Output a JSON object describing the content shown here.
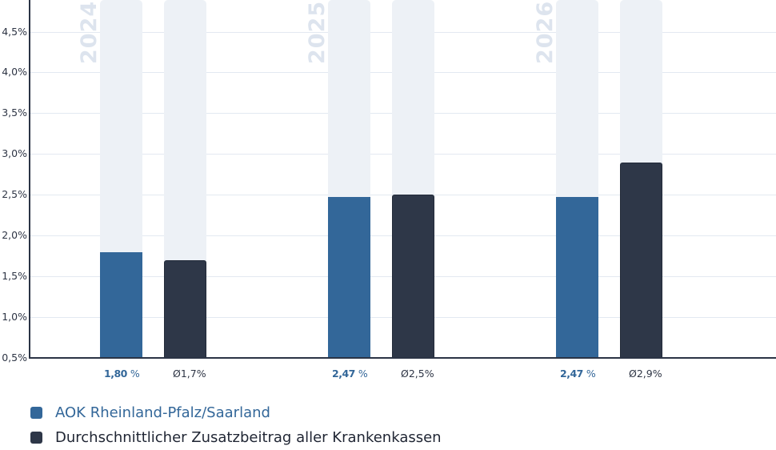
{
  "chart_data": {
    "type": "bar",
    "title": "",
    "xlabel": "",
    "ylabel": "",
    "categories": [
      "2024",
      "2025",
      "2026"
    ],
    "series": [
      {
        "name": "AOK Rheinland-Pfalz/Saarland",
        "color": "#336799",
        "values": [
          1.8,
          2.47,
          2.47
        ],
        "labels": [
          "1,80",
          "2,47",
          "2,47"
        ],
        "label_suffix": "%"
      },
      {
        "name": "Durchschnittlicher Zusatzbeitrag aller Krankenkassen",
        "color": "#2e3748",
        "values": [
          1.7,
          2.5,
          2.9
        ],
        "labels": [
          "Ø1,7%",
          "Ø2,5%",
          "Ø2,9%"
        ]
      }
    ],
    "ylim": [
      0.5,
      4.85
    ],
    "yticks": [
      0.5,
      1.0,
      1.5,
      2.0,
      2.5,
      3.0,
      3.5,
      4.0,
      4.5
    ],
    "ytick_labels": [
      "0,5%",
      "1,0%",
      "1,5%",
      "2,0%",
      "2,5%",
      "3,0%",
      "3,5%",
      "4,0%",
      "4,5%"
    ],
    "grid": true,
    "legend_position": "bottom-left",
    "background_track_color": "#edf1f6"
  },
  "legend": {
    "items": [
      {
        "label": "AOK Rheinland-Pfalz/Saarland",
        "color": "#336799",
        "text_color": "#336799"
      },
      {
        "label": "Durchschnittlicher Zusatzbeitrag aller Krankenkassen",
        "color": "#2e3748",
        "text_color": "#1f2533"
      }
    ]
  }
}
